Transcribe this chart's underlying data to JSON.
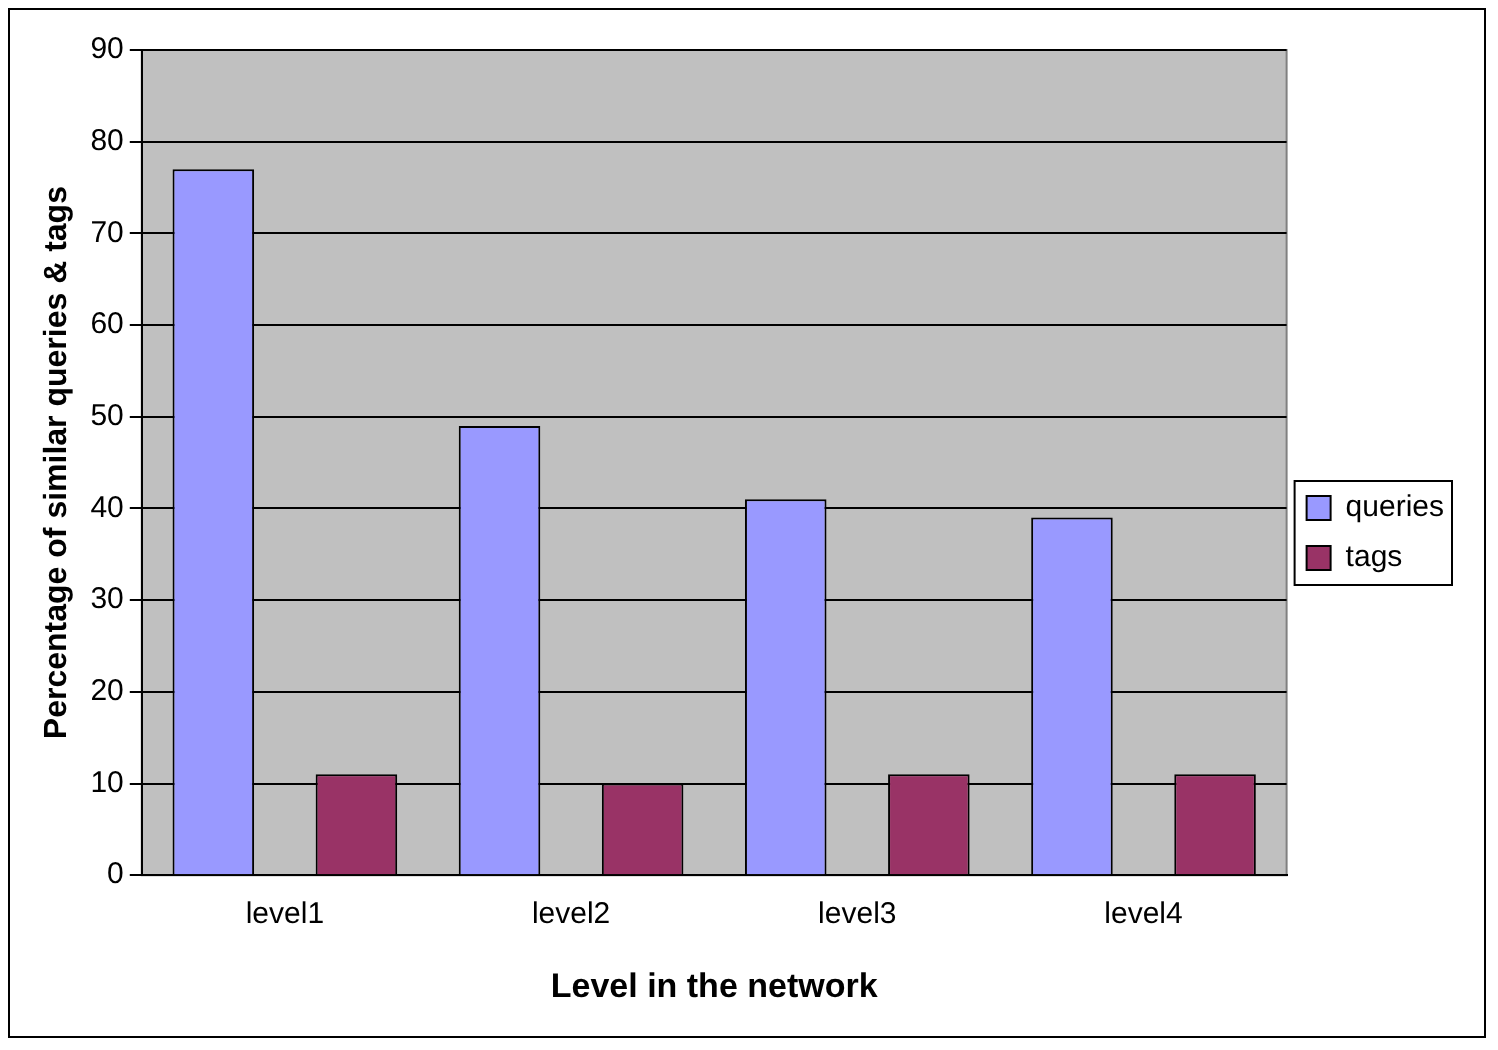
{
  "chart_data": {
    "type": "bar",
    "xlabel": "Level in the network",
    "ylabel": "Percentage of similar queries & tags",
    "categories": [
      "level1",
      "level2",
      "level3",
      "level4"
    ],
    "series": [
      {
        "name": "queries",
        "color": "#9999ff",
        "values": [
          77,
          49,
          41,
          39
        ]
      },
      {
        "name": "tags",
        "color": "#993366",
        "values": [
          11,
          10,
          11,
          11
        ]
      }
    ],
    "ylim": [
      0,
      90
    ],
    "yticks": [
      0,
      10,
      20,
      30,
      40,
      50,
      60,
      70,
      80,
      90
    ],
    "grid": "y",
    "legend": "right"
  }
}
